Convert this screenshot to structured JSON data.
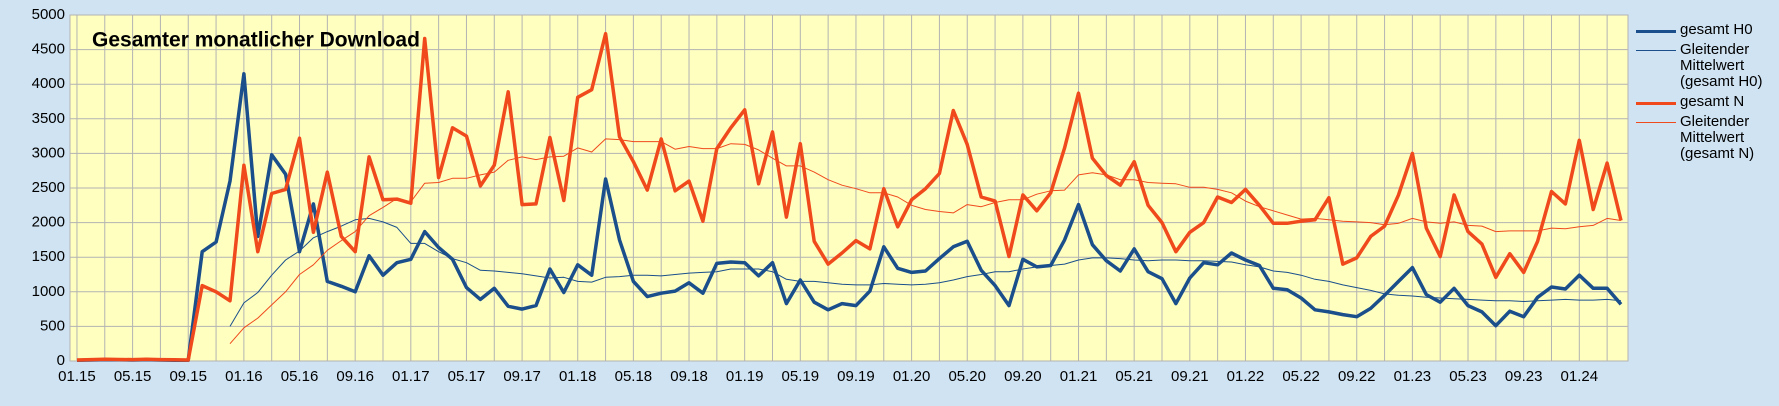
{
  "chart_data": {
    "type": "line",
    "title": "Gesamter monatlicher Download",
    "categories": [
      "01.15",
      null,
      null,
      null,
      "05.15",
      null,
      null,
      null,
      "09.15",
      null,
      null,
      null,
      "01.16",
      null,
      null,
      null,
      "05.16",
      null,
      null,
      null,
      "09.16",
      null,
      null,
      null,
      "01.17",
      null,
      null,
      null,
      "05.17",
      null,
      null,
      null,
      "09.17",
      null,
      null,
      null,
      "01.18",
      null,
      null,
      null,
      "05.18",
      null,
      null,
      null,
      "09.18",
      null,
      null,
      null,
      "01.19",
      null,
      null,
      null,
      "05.19",
      null,
      null,
      null,
      "09.19",
      null,
      null,
      null,
      "01.20",
      null,
      null,
      null,
      "05.20",
      null,
      null,
      null,
      "09.20",
      null,
      null,
      null,
      "01.21",
      null,
      null,
      null,
      "05.21",
      null,
      null,
      null,
      "09.21",
      null,
      null,
      null,
      "01.22",
      null,
      null,
      null,
      "05.22",
      null,
      null,
      null,
      "09.22",
      null,
      null,
      null,
      "01.23",
      null,
      null,
      null,
      "05.23",
      null,
      null,
      null,
      "09.23",
      null,
      null,
      null,
      "01.24",
      null,
      null,
      null
    ],
    "ylim": [
      0,
      5000
    ],
    "yticks": [
      0,
      500,
      1000,
      1500,
      2000,
      2500,
      3000,
      3500,
      4000,
      4500,
      5000
    ],
    "grid": true,
    "legend": "right",
    "series": [
      {
        "name": "gesamt H0",
        "color": "#1a4f8c",
        "line_width": 3.5,
        "values": [
          10,
          15,
          20,
          18,
          15,
          20,
          15,
          12,
          10,
          1580,
          1720,
          2600,
          4150,
          1800,
          2980,
          2700,
          1580,
          2270,
          1150,
          1080,
          1000,
          1520,
          1240,
          1420,
          1470,
          1870,
          1640,
          1470,
          1060,
          890,
          1050,
          790,
          750,
          800,
          1330,
          990,
          1390,
          1240,
          2630,
          1750,
          1150,
          930,
          980,
          1010,
          1130,
          980,
          1410,
          1430,
          1420,
          1230,
          1420,
          830,
          1170,
          850,
          740,
          830,
          800,
          1010,
          1650,
          1340,
          1280,
          1300,
          1480,
          1650,
          1730,
          1310,
          1090,
          800,
          1470,
          1360,
          1380,
          1750,
          2260,
          1680,
          1450,
          1300,
          1620,
          1290,
          1190,
          830,
          1200,
          1420,
          1390,
          1560,
          1460,
          1380,
          1050,
          1030,
          910,
          740,
          710,
          670,
          640,
          760,
          950,
          1150,
          1350,
          960,
          850,
          1050,
          800,
          710,
          510,
          720,
          640,
          920,
          1070,
          1040,
          1240,
          1050,
          1050,
          820
        ]
      },
      {
        "name": "Gleitender Mittelwert (gesamt H0)",
        "color": "#1a4f8c",
        "line_width": 1,
        "values": [
          null,
          null,
          null,
          null,
          null,
          null,
          null,
          null,
          null,
          null,
          null,
          500,
          840,
          990,
          1240,
          1460,
          1590,
          1780,
          1870,
          1950,
          2040,
          2060,
          2010,
          1930,
          1700,
          1700,
          1580,
          1480,
          1420,
          1310,
          1300,
          1280,
          1260,
          1230,
          1200,
          1210,
          1150,
          1140,
          1210,
          1220,
          1240,
          1240,
          1230,
          1250,
          1270,
          1280,
          1290,
          1330,
          1330,
          1330,
          1290,
          1180,
          1150,
          1150,
          1130,
          1110,
          1100,
          1100,
          1120,
          1110,
          1100,
          1110,
          1130,
          1170,
          1220,
          1250,
          1290,
          1290,
          1330,
          1360,
          1380,
          1400,
          1460,
          1490,
          1490,
          1480,
          1460,
          1450,
          1460,
          1460,
          1450,
          1450,
          1440,
          1430,
          1390,
          1360,
          1300,
          1280,
          1240,
          1180,
          1150,
          1100,
          1060,
          1020,
          970,
          950,
          940,
          920,
          910,
          900,
          890,
          880,
          870,
          870,
          860,
          870,
          880,
          890,
          880,
          880,
          890,
          870
        ]
      },
      {
        "name": "gesamt N",
        "color": "#f04a1c",
        "line_width": 3.5,
        "values": [
          15,
          20,
          25,
          22,
          20,
          25,
          20,
          18,
          15,
          1090,
          1000,
          870,
          2830,
          1580,
          2420,
          2480,
          3220,
          1860,
          2730,
          1800,
          1580,
          2950,
          2330,
          2340,
          2280,
          4660,
          2650,
          3370,
          3250,
          2530,
          2830,
          3890,
          2260,
          2270,
          3230,
          2320,
          3810,
          3920,
          4730,
          3240,
          2880,
          2470,
          3210,
          2460,
          2600,
          2020,
          3070,
          3370,
          3630,
          2560,
          3310,
          2080,
          3140,
          1730,
          1400,
          1560,
          1740,
          1620,
          2490,
          1940,
          2330,
          2490,
          2710,
          3620,
          3130,
          2370,
          2310,
          1510,
          2400,
          2170,
          2430,
          3080,
          3870,
          2930,
          2680,
          2540,
          2880,
          2250,
          2000,
          1580,
          1860,
          2000,
          2370,
          2290,
          2480,
          2250,
          1990,
          1990,
          2020,
          2040,
          2360,
          1400,
          1490,
          1800,
          1950,
          2400,
          3000,
          1920,
          1510,
          2400,
          1870,
          1690,
          1210,
          1550,
          1280,
          1730,
          2450,
          2270,
          3190,
          2190,
          2860,
          2030
        ]
      },
      {
        "name": "Gleitender Mittelwert (gesamt N)",
        "color": "#f04a1c",
        "line_width": 1,
        "values": [
          null,
          null,
          null,
          null,
          null,
          null,
          null,
          null,
          null,
          null,
          null,
          250,
          480,
          620,
          810,
          1000,
          1250,
          1390,
          1600,
          1740,
          1870,
          2100,
          2220,
          2350,
          2300,
          2570,
          2580,
          2640,
          2640,
          2690,
          2730,
          2900,
          2950,
          2910,
          2950,
          2960,
          3080,
          3020,
          3210,
          3200,
          3170,
          3170,
          3170,
          3060,
          3100,
          3070,
          3070,
          3140,
          3130,
          3050,
          2930,
          2820,
          2820,
          2730,
          2620,
          2540,
          2490,
          2430,
          2430,
          2370,
          2250,
          2190,
          2160,
          2140,
          2260,
          2230,
          2290,
          2330,
          2330,
          2410,
          2460,
          2470,
          2690,
          2720,
          2690,
          2620,
          2620,
          2580,
          2570,
          2560,
          2510,
          2510,
          2480,
          2430,
          2310,
          2230,
          2170,
          2110,
          2050,
          2060,
          2040,
          2020,
          2010,
          2000,
          1970,
          1990,
          2060,
          2010,
          1990,
          2010,
          1960,
          1950,
          1870,
          1880,
          1880,
          1880,
          1920,
          1910,
          1940,
          1960,
          2060,
          2030
        ]
      }
    ]
  }
}
